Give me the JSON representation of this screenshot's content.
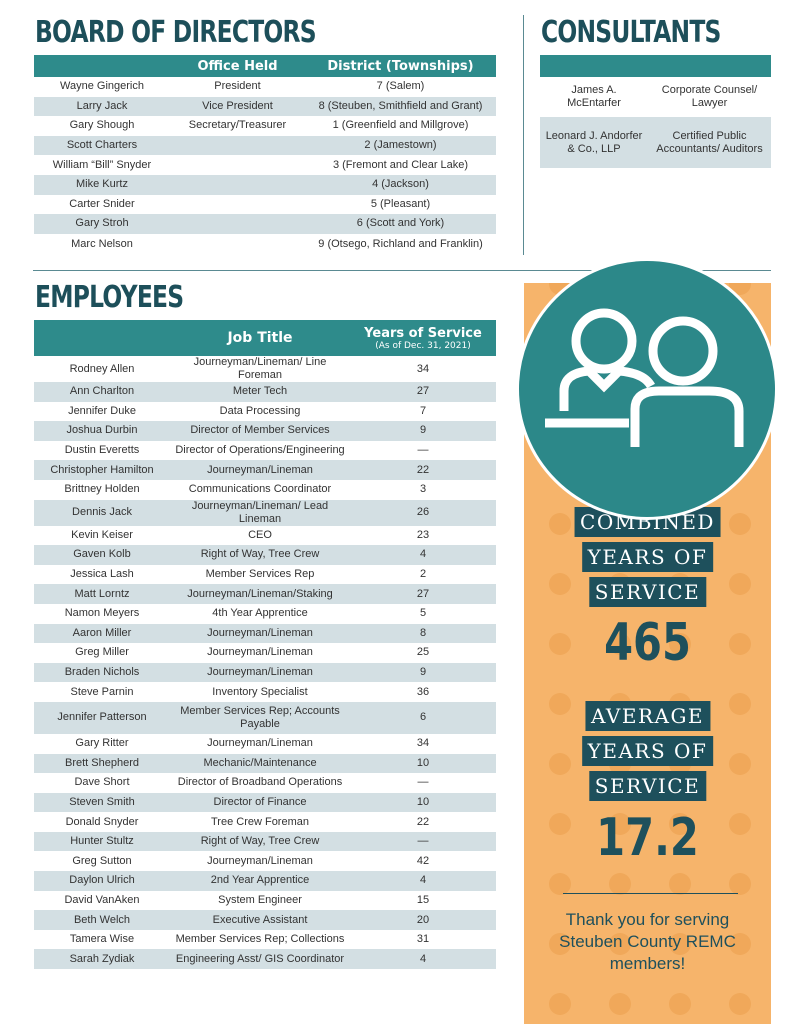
{
  "board": {
    "title": "BOARD OF DIRECTORS",
    "headers": [
      "",
      "Office Held",
      "District (Townships)"
    ],
    "rows": [
      [
        "Wayne Gingerich",
        "President",
        "7 (Salem)"
      ],
      [
        "Larry Jack",
        "Vice President",
        "8 (Steuben, Smithfield and Grant)"
      ],
      [
        "Gary Shough",
        "Secretary/Treasurer",
        "1 (Greenfield and Millgrove)"
      ],
      [
        "Scott Charters",
        "",
        "2 (Jamestown)"
      ],
      [
        "William “Bill” Snyder",
        "",
        "3 (Fremont and Clear Lake)"
      ],
      [
        "Mike Kurtz",
        "",
        "4 (Jackson)"
      ],
      [
        "Carter Snider",
        "",
        "5 (Pleasant)"
      ],
      [
        "Gary Stroh",
        "",
        "6 (Scott and York)"
      ],
      [
        "Marc Nelson",
        "",
        "9 (Otsego, Richland and Franklin)"
      ]
    ]
  },
  "consultants": {
    "title": "CONSULTANTS",
    "rows": [
      [
        "James A. McEntarfer",
        "Corporate Counsel/ Lawyer"
      ],
      [
        "Leonard J. Andorfer & Co., LLP",
        "Certified Public Accountants/ Auditors"
      ]
    ]
  },
  "employees": {
    "title": "EMPLOYEES",
    "headers": [
      "",
      "Job Title",
      "Years of Service"
    ],
    "header_note": "(As of Dec. 31, 2021)",
    "rows": [
      [
        "Rodney Allen",
        "Journeyman/Lineman/ Line Foreman",
        "34"
      ],
      [
        "Ann Charlton",
        "Meter Tech",
        "27"
      ],
      [
        "Jennifer Duke",
        "Data Processing",
        "7"
      ],
      [
        "Joshua Durbin",
        "Director of Member Services",
        "9"
      ],
      [
        "Dustin Everetts",
        "Director of Operations/Engineering",
        "—"
      ],
      [
        "Christopher Hamilton",
        "Journeyman/Lineman",
        "22"
      ],
      [
        "Brittney Holden",
        "Communications Coordinator",
        "3"
      ],
      [
        "Dennis Jack",
        "Journeyman/Lineman/ Lead Lineman",
        "26"
      ],
      [
        "Kevin Keiser",
        "CEO",
        "23"
      ],
      [
        "Gaven Kolb",
        "Right of Way, Tree Crew",
        "4"
      ],
      [
        "Jessica Lash",
        "Member Services Rep",
        "2"
      ],
      [
        "Matt Lorntz",
        "Journeyman/Lineman/Staking",
        "27"
      ],
      [
        "Namon Meyers",
        "4th Year Apprentice",
        "5"
      ],
      [
        "Aaron Miller",
        "Journeyman/Lineman",
        "8"
      ],
      [
        "Greg Miller",
        "Journeyman/Lineman",
        "25"
      ],
      [
        "Braden Nichols",
        "Journeyman/Lineman",
        "9"
      ],
      [
        "Steve Parnin",
        "Inventory Specialist",
        "36"
      ],
      [
        "Jennifer Patterson",
        "Member Services Rep; Accounts Payable",
        "6"
      ],
      [
        "Gary Ritter",
        "Journeyman/Lineman",
        "34"
      ],
      [
        "Brett Shepherd",
        "Mechanic/Maintenance",
        "10"
      ],
      [
        "Dave Short",
        "Director of Broadband Operations",
        "—"
      ],
      [
        "Steven Smith",
        "Director of Finance",
        "10"
      ],
      [
        "Donald Snyder",
        "Tree Crew Foreman",
        "22"
      ],
      [
        "Hunter Stultz",
        "Right of Way, Tree Crew",
        "—"
      ],
      [
        "Greg Sutton",
        "Journeyman/Lineman",
        "42"
      ],
      [
        "Daylon Ulrich",
        "2nd Year Apprentice",
        "4"
      ],
      [
        "David VanAken",
        "System Engineer",
        "15"
      ],
      [
        "Beth Welch",
        "Executive Assistant",
        "20"
      ],
      [
        "Tamera Wise",
        "Member Services Rep; Collections",
        "31"
      ],
      [
        "Sarah Zydiak",
        "Engineering Asst/ GIS Coordinator",
        "4"
      ]
    ]
  },
  "stats": {
    "icon": "people-icon",
    "combined_label": [
      "COMBINED",
      "YEARS OF",
      "SERVICE"
    ],
    "combined_value": "465",
    "average_label": [
      "AVERAGE",
      "YEARS OF",
      "SERVICE"
    ],
    "average_value": "17.2",
    "thanks": "Thank you for serving Steuben County REMC members!"
  },
  "colors": {
    "teal": "#2e8b8b",
    "navy": "#1e505c",
    "orange": "#f6b46b",
    "alt_row": "#d3dfe3"
  }
}
